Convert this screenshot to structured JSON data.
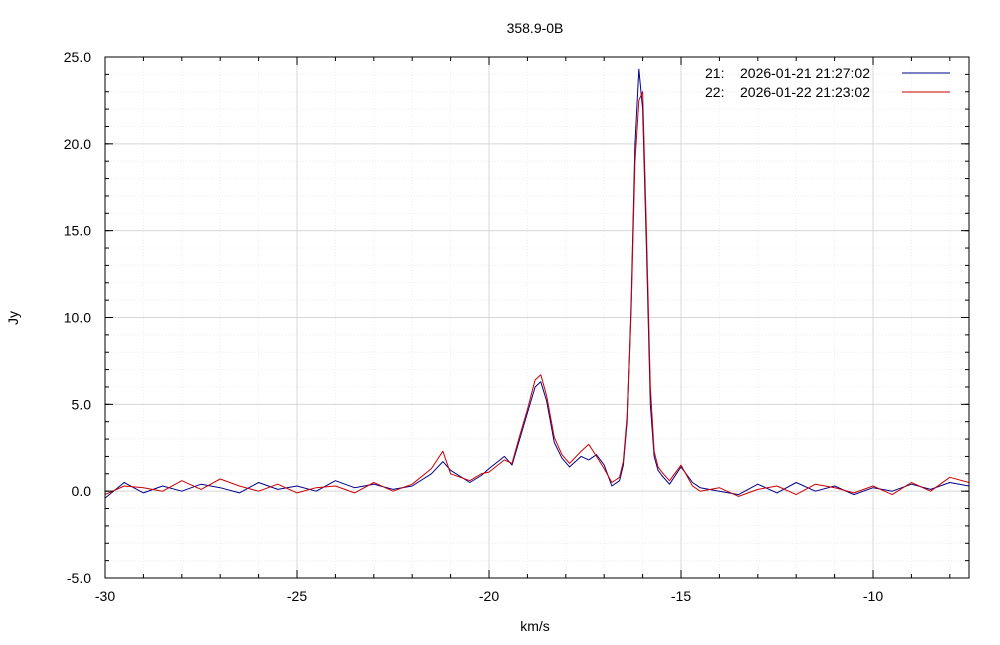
{
  "chart_data": {
    "type": "line",
    "title": "358.9-0B",
    "xlabel": "km/s",
    "ylabel": "Jy",
    "xlim": [
      -30,
      -7.5
    ],
    "ylim": [
      -5,
      25
    ],
    "xticks": [
      -30,
      -25,
      -20,
      -15,
      -10
    ],
    "xtick_labels": [
      "-30",
      "-25",
      "-20",
      "-15",
      "-10"
    ],
    "yticks": [
      -5,
      0,
      5,
      10,
      15,
      20,
      25
    ],
    "ytick_labels": [
      "-5.0",
      "0.0",
      "5.0",
      "10.0",
      "15.0",
      "20.0",
      "25.0"
    ],
    "grid": true,
    "legend_position": "top-right",
    "series": [
      {
        "id": "21",
        "name": "2026-01-21 21:27:02",
        "color": "#00008b",
        "x": [
          -30.0,
          -29.5,
          -29.0,
          -28.5,
          -28.0,
          -27.5,
          -27.0,
          -26.5,
          -26.0,
          -25.5,
          -25.0,
          -24.5,
          -24.0,
          -23.5,
          -23.0,
          -22.5,
          -22.0,
          -21.5,
          -21.2,
          -21.0,
          -20.5,
          -20.2,
          -20.0,
          -19.6,
          -19.4,
          -19.2,
          -19.0,
          -18.8,
          -18.65,
          -18.5,
          -18.3,
          -18.1,
          -17.9,
          -17.6,
          -17.4,
          -17.2,
          -17.0,
          -16.8,
          -16.6,
          -16.5,
          -16.4,
          -16.3,
          -16.2,
          -16.1,
          -16.0,
          -15.9,
          -15.8,
          -15.7,
          -15.6,
          -15.5,
          -15.3,
          -15.0,
          -14.7,
          -14.5,
          -14.0,
          -13.5,
          -13.0,
          -12.5,
          -12.0,
          -11.5,
          -11.0,
          -10.5,
          -10.0,
          -9.5,
          -9.0,
          -8.5,
          -8.0,
          -7.5
        ],
        "y": [
          -0.4,
          0.5,
          -0.1,
          0.3,
          0.0,
          0.4,
          0.2,
          -0.1,
          0.5,
          0.1,
          0.3,
          0.0,
          0.6,
          0.2,
          0.4,
          0.1,
          0.3,
          1.0,
          1.7,
          1.2,
          0.5,
          0.9,
          1.3,
          2.0,
          1.5,
          3.0,
          4.5,
          6.0,
          6.3,
          5.2,
          2.8,
          1.9,
          1.4,
          2.0,
          1.8,
          2.1,
          1.5,
          0.3,
          0.6,
          1.5,
          4.0,
          11.0,
          20.0,
          24.3,
          22.0,
          14.0,
          5.0,
          2.0,
          1.2,
          0.9,
          0.4,
          1.4,
          0.5,
          0.2,
          0.0,
          -0.2,
          0.4,
          -0.1,
          0.5,
          0.0,
          0.3,
          -0.2,
          0.2,
          0.0,
          0.4,
          0.1,
          0.5,
          0.3
        ]
      },
      {
        "id": "22",
        "name": "2026-01-22 21:23:02",
        "color": "#cc0000",
        "x": [
          -30.0,
          -29.5,
          -29.0,
          -28.5,
          -28.0,
          -27.5,
          -27.0,
          -26.5,
          -26.0,
          -25.5,
          -25.0,
          -24.5,
          -24.0,
          -23.5,
          -23.0,
          -22.5,
          -22.0,
          -21.5,
          -21.2,
          -21.0,
          -20.5,
          -20.2,
          -20.0,
          -19.6,
          -19.4,
          -19.2,
          -19.0,
          -18.8,
          -18.65,
          -18.5,
          -18.3,
          -18.1,
          -17.9,
          -17.6,
          -17.4,
          -17.2,
          -17.0,
          -16.8,
          -16.6,
          -16.5,
          -16.4,
          -16.3,
          -16.2,
          -16.1,
          -16.0,
          -15.9,
          -15.8,
          -15.7,
          -15.6,
          -15.5,
          -15.3,
          -15.0,
          -14.7,
          -14.5,
          -14.0,
          -13.5,
          -13.0,
          -12.5,
          -12.0,
          -11.5,
          -11.0,
          -10.5,
          -10.0,
          -9.5,
          -9.0,
          -8.5,
          -8.0,
          -7.5
        ],
        "y": [
          -0.2,
          0.3,
          0.2,
          0.0,
          0.6,
          0.1,
          0.7,
          0.3,
          0.0,
          0.4,
          -0.1,
          0.2,
          0.3,
          -0.1,
          0.5,
          0.0,
          0.4,
          1.3,
          2.3,
          1.0,
          0.6,
          1.0,
          1.1,
          1.8,
          1.6,
          3.2,
          4.7,
          6.4,
          6.7,
          5.5,
          3.1,
          2.1,
          1.6,
          2.3,
          2.7,
          2.0,
          1.3,
          0.5,
          0.8,
          1.7,
          4.3,
          10.5,
          19.0,
          22.5,
          23.0,
          15.0,
          6.0,
          2.3,
          1.4,
          1.1,
          0.6,
          1.5,
          0.3,
          0.0,
          0.2,
          -0.3,
          0.1,
          0.3,
          -0.2,
          0.4,
          0.2,
          -0.1,
          0.3,
          -0.2,
          0.5,
          0.0,
          0.8,
          0.5
        ]
      }
    ]
  }
}
